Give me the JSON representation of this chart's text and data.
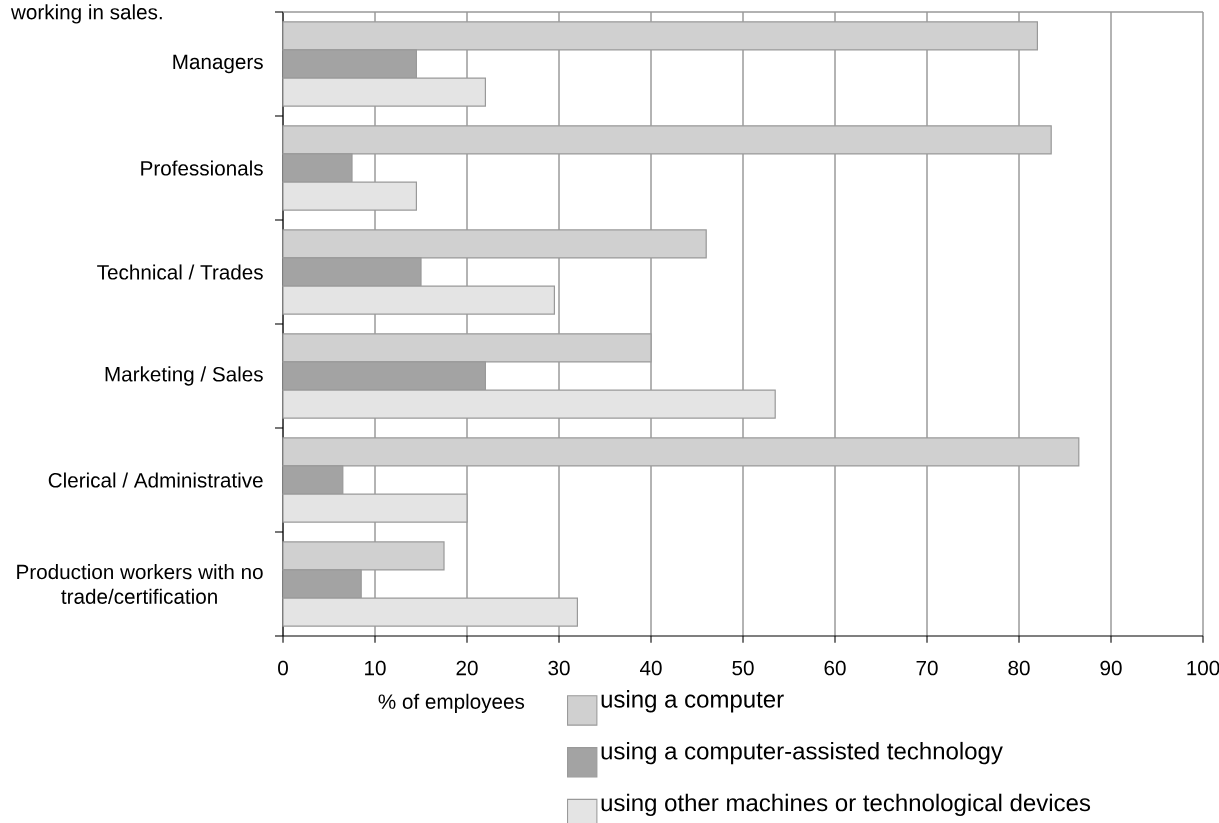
{
  "chart_data": {
    "type": "bar",
    "orientation": "horizontal",
    "annotations": [
      "working in sales."
    ],
    "xlabel": "% of employees",
    "categories": [
      "Managers",
      "Professionals",
      "Technical / Trades",
      "Marketing / Sales",
      "Clerical / Administrative",
      "Production workers with no trade/certification"
    ],
    "series": [
      {
        "name": "using a computer",
        "color": "#d0d0d0",
        "values": [
          82,
          83.5,
          46,
          40,
          86.5,
          17.5
        ]
      },
      {
        "name": "using a computer-assisted technology",
        "color": "#a3a3a3",
        "values": [
          14.5,
          7.5,
          15,
          22,
          6.5,
          8.5
        ]
      },
      {
        "name": "using other machines or technological devices",
        "color": "#e4e4e4",
        "values": [
          22,
          14.5,
          29.5,
          53.5,
          20,
          32
        ]
      }
    ],
    "xlim": [
      0,
      100
    ],
    "xticks": [
      0,
      10,
      20,
      30,
      40,
      50,
      60,
      70,
      80,
      90,
      100
    ],
    "grid": "x",
    "legend": "bottom"
  }
}
